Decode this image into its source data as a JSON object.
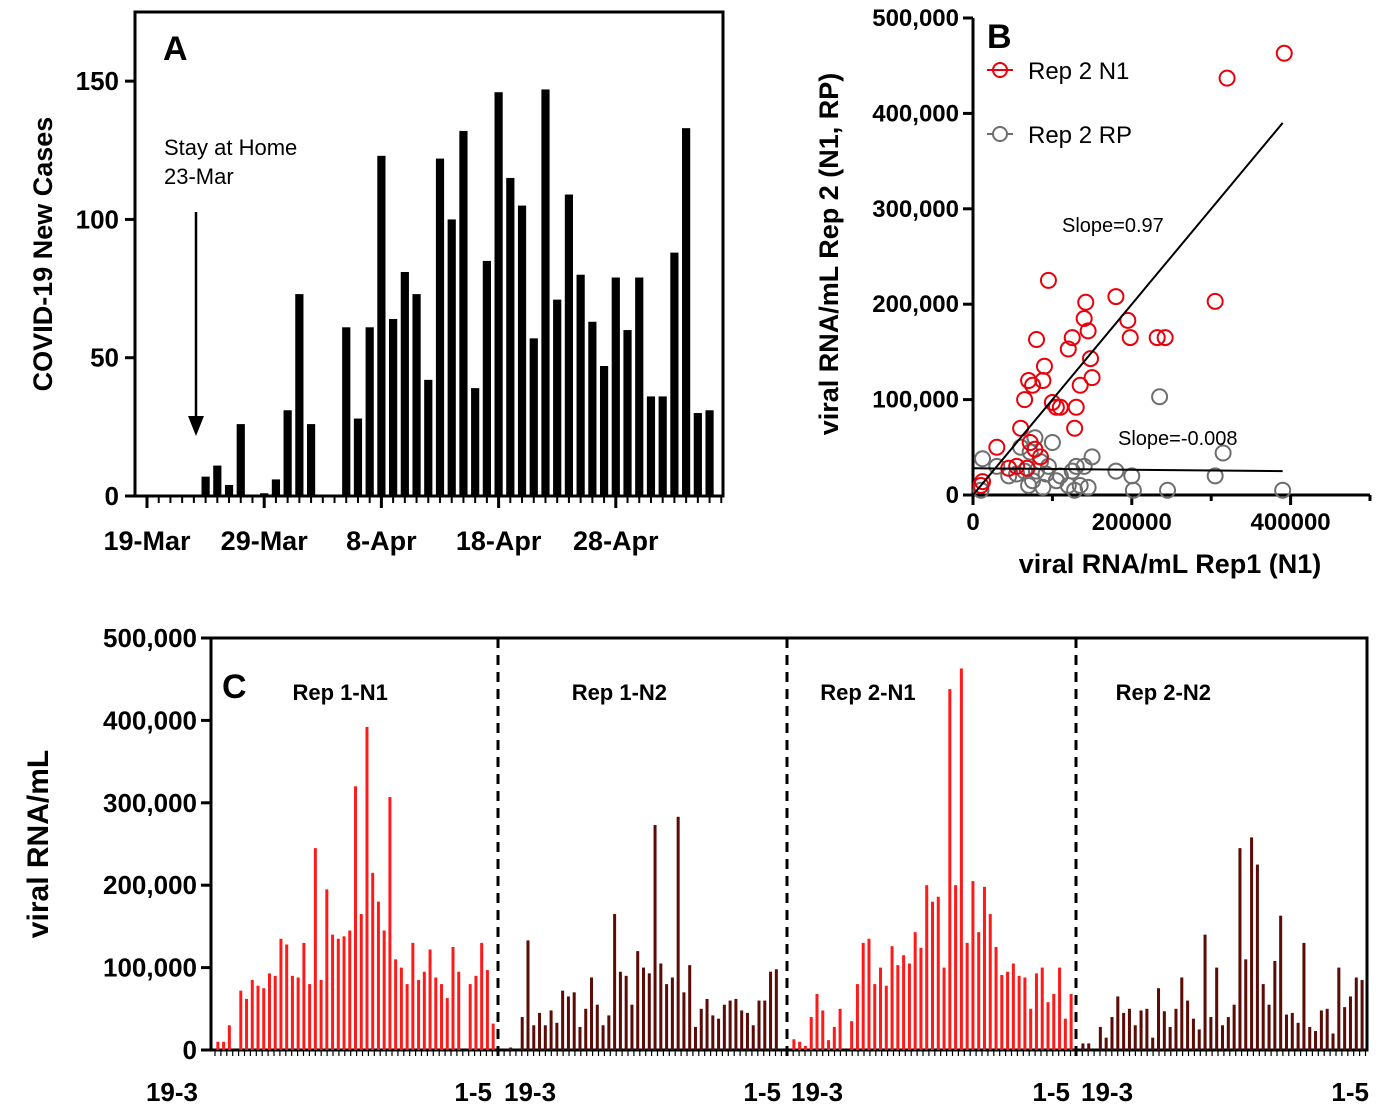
{
  "chart_data": [
    {
      "panel": "A",
      "type": "bar",
      "ylabel": "COVID-19 New Cases",
      "ylim": [
        0,
        175
      ],
      "yticks": [
        0,
        50,
        100,
        150
      ],
      "x_start_date": "19-Mar",
      "xtick_labels": [
        "19-Mar",
        "29-Mar",
        "8-Apr",
        "18-Apr",
        "28-Apr"
      ],
      "xtick_days": [
        0,
        10,
        20,
        30,
        40
      ],
      "values": [
        0,
        0,
        0,
        0,
        0,
        7,
        11,
        4,
        26,
        0,
        1,
        6,
        31,
        73,
        26,
        0,
        0,
        61,
        28,
        61,
        123,
        64,
        81,
        73,
        42,
        122,
        100,
        132,
        39,
        85,
        146,
        115,
        105,
        57,
        147,
        71,
        109,
        80,
        63,
        47,
        79,
        60,
        79,
        36,
        36,
        88,
        133,
        30,
        31
      ],
      "annotation": {
        "line1": "Stay at Home",
        "line2": "23-Mar",
        "day": 4
      }
    },
    {
      "panel": "B",
      "type": "scatter",
      "xlabel": "viral RNA/mL Rep1 (N1)",
      "ylabel": "viral RNA/mL Rep 2 (N1, RP)",
      "xlim": [
        0,
        500000
      ],
      "ylim": [
        0,
        500000
      ],
      "xticks": [
        0,
        200000,
        400000
      ],
      "xtick_labels": [
        "0",
        "200000",
        "400000"
      ],
      "yticks": [
        0,
        100000,
        200000,
        300000,
        400000,
        500000
      ],
      "ytick_labels": [
        "0",
        "100,000",
        "200,000",
        "300,000",
        "400,000",
        "500,000"
      ],
      "series": [
        {
          "name": "Rep 2 N1",
          "color": "#e8000b",
          "x": [
            10000,
            12000,
            30000,
            45000,
            55000,
            60000,
            65000,
            68000,
            70000,
            72000,
            75000,
            78000,
            80000,
            85000,
            88000,
            90000,
            95000,
            100000,
            105000,
            110000,
            120000,
            125000,
            128000,
            130000,
            135000,
            140000,
            142000,
            145000,
            148000,
            150000,
            180000,
            195000,
            198000,
            232000,
            242000,
            305000,
            320000,
            392000
          ],
          "y": [
            10000,
            14000,
            50000,
            28000,
            30000,
            70000,
            100000,
            28000,
            120000,
            55000,
            115000,
            48000,
            163000,
            40000,
            120000,
            135000,
            225000,
            97000,
            92000,
            92000,
            153000,
            165000,
            70000,
            92000,
            115000,
            185000,
            202000,
            172000,
            143000,
            123000,
            208000,
            183000,
            165000,
            165000,
            165000,
            203000,
            437000,
            463000
          ]
        },
        {
          "name": "Rep 2 RP",
          "color": "#6e6e6e",
          "x": [
            10000,
            12000,
            30000,
            45000,
            55000,
            60000,
            65000,
            70000,
            72000,
            75000,
            78000,
            80000,
            85000,
            88000,
            92000,
            95000,
            100000,
            105000,
            110000,
            120000,
            125000,
            128000,
            130000,
            135000,
            140000,
            145000,
            150000,
            180000,
            200000,
            202000,
            235000,
            245000,
            305000,
            315000,
            390000
          ],
          "y": [
            5000,
            38000,
            30000,
            20000,
            22000,
            50000,
            25000,
            10000,
            45000,
            15000,
            60000,
            25000,
            35000,
            8000,
            22000,
            30000,
            55000,
            15000,
            20000,
            10000,
            25000,
            5000,
            30000,
            10000,
            30000,
            8000,
            40000,
            25000,
            20000,
            5000,
            103000,
            5000,
            20000,
            44000,
            5000
          ]
        }
      ],
      "fits": [
        {
          "label": "Slope=0.97",
          "x0": 0,
          "y0": 0,
          "x1": 390000,
          "y1": 390000
        },
        {
          "label": "Slope=-0.008",
          "x0": 0,
          "y0": 28000,
          "x1": 390000,
          "y1": 25000
        }
      ]
    },
    {
      "panel": "C",
      "type": "bar",
      "ylabel": "viral RNA/mL",
      "ylim": [
        0,
        500000
      ],
      "yticks": [
        0,
        100000,
        200000,
        300000,
        400000,
        500000
      ],
      "ytick_labels": [
        "0",
        "100,000",
        "200,000",
        "300,000",
        "400,000",
        "500,000"
      ],
      "xtick_start": "19-3",
      "xtick_end": "1-5",
      "segments": [
        {
          "name": "Rep 1-N1",
          "color": "#ff1a1a",
          "values": [
            10000,
            10000,
            30000,
            0,
            72000,
            62000,
            85000,
            78000,
            75000,
            93000,
            90000,
            135000,
            128000,
            90000,
            88000,
            130000,
            80000,
            245000,
            85000,
            195000,
            140000,
            135000,
            138000,
            145000,
            320000,
            165000,
            392000,
            215000,
            180000,
            145000,
            307000,
            110000,
            100000,
            80000,
            130000,
            85000,
            95000,
            122000,
            88000,
            80000,
            63000,
            125000,
            95000,
            0,
            80000,
            90000,
            130000,
            97000,
            32000
          ],
          "label_x_frac": 0.45
        },
        {
          "name": "Rep 1-N2",
          "color": "#5c0b07",
          "values": [
            0,
            3000,
            0,
            40000,
            133000,
            30000,
            45000,
            30000,
            48000,
            33000,
            72000,
            65000,
            70000,
            28000,
            50000,
            88000,
            55000,
            30000,
            42000,
            165000,
            95000,
            90000,
            55000,
            120000,
            100000,
            93000,
            273000,
            105000,
            80000,
            88000,
            283000,
            70000,
            103000,
            28000,
            50000,
            62000,
            42000,
            38000,
            55000,
            60000,
            62000,
            48000,
            45000,
            30000,
            60000,
            60000,
            95000,
            98000,
            0
          ],
          "label_x_frac": 0.42
        },
        {
          "name": "Rep 2-N1",
          "color": "#ff1a1a",
          "values": [
            13000,
            10000,
            5000,
            40000,
            68000,
            48000,
            12000,
            28000,
            50000,
            0,
            35000,
            80000,
            130000,
            135000,
            80000,
            100000,
            78000,
            126000,
            103000,
            115000,
            105000,
            143000,
            124000,
            200000,
            180000,
            186000,
            100000,
            438000,
            200000,
            463000,
            130000,
            205000,
            143000,
            198000,
            165000,
            125000,
            91000,
            95000,
            105000,
            90000,
            88000,
            50000,
            93000,
            100000,
            58000,
            68000,
            100000,
            38000,
            68000
          ],
          "label_x_frac": 0.28
        },
        {
          "name": "Rep 2-N2",
          "color": "#5c0b07",
          "values": [
            8000,
            8000,
            0,
            28000,
            15000,
            40000,
            65000,
            45000,
            50000,
            30000,
            48000,
            50000,
            15000,
            75000,
            47000,
            28000,
            50000,
            88000,
            60000,
            38000,
            25000,
            140000,
            40000,
            100000,
            30000,
            40000,
            55000,
            245000,
            110000,
            258000,
            225000,
            80000,
            55000,
            108000,
            163000,
            43000,
            45000,
            33000,
            130000,
            28000,
            23000,
            48000,
            50000,
            20000,
            100000,
            52000,
            65000,
            88000,
            85000
          ],
          "label_x_frac": 0.3
        }
      ]
    }
  ],
  "panels": {
    "A": "A",
    "B": "B",
    "C": "C"
  }
}
